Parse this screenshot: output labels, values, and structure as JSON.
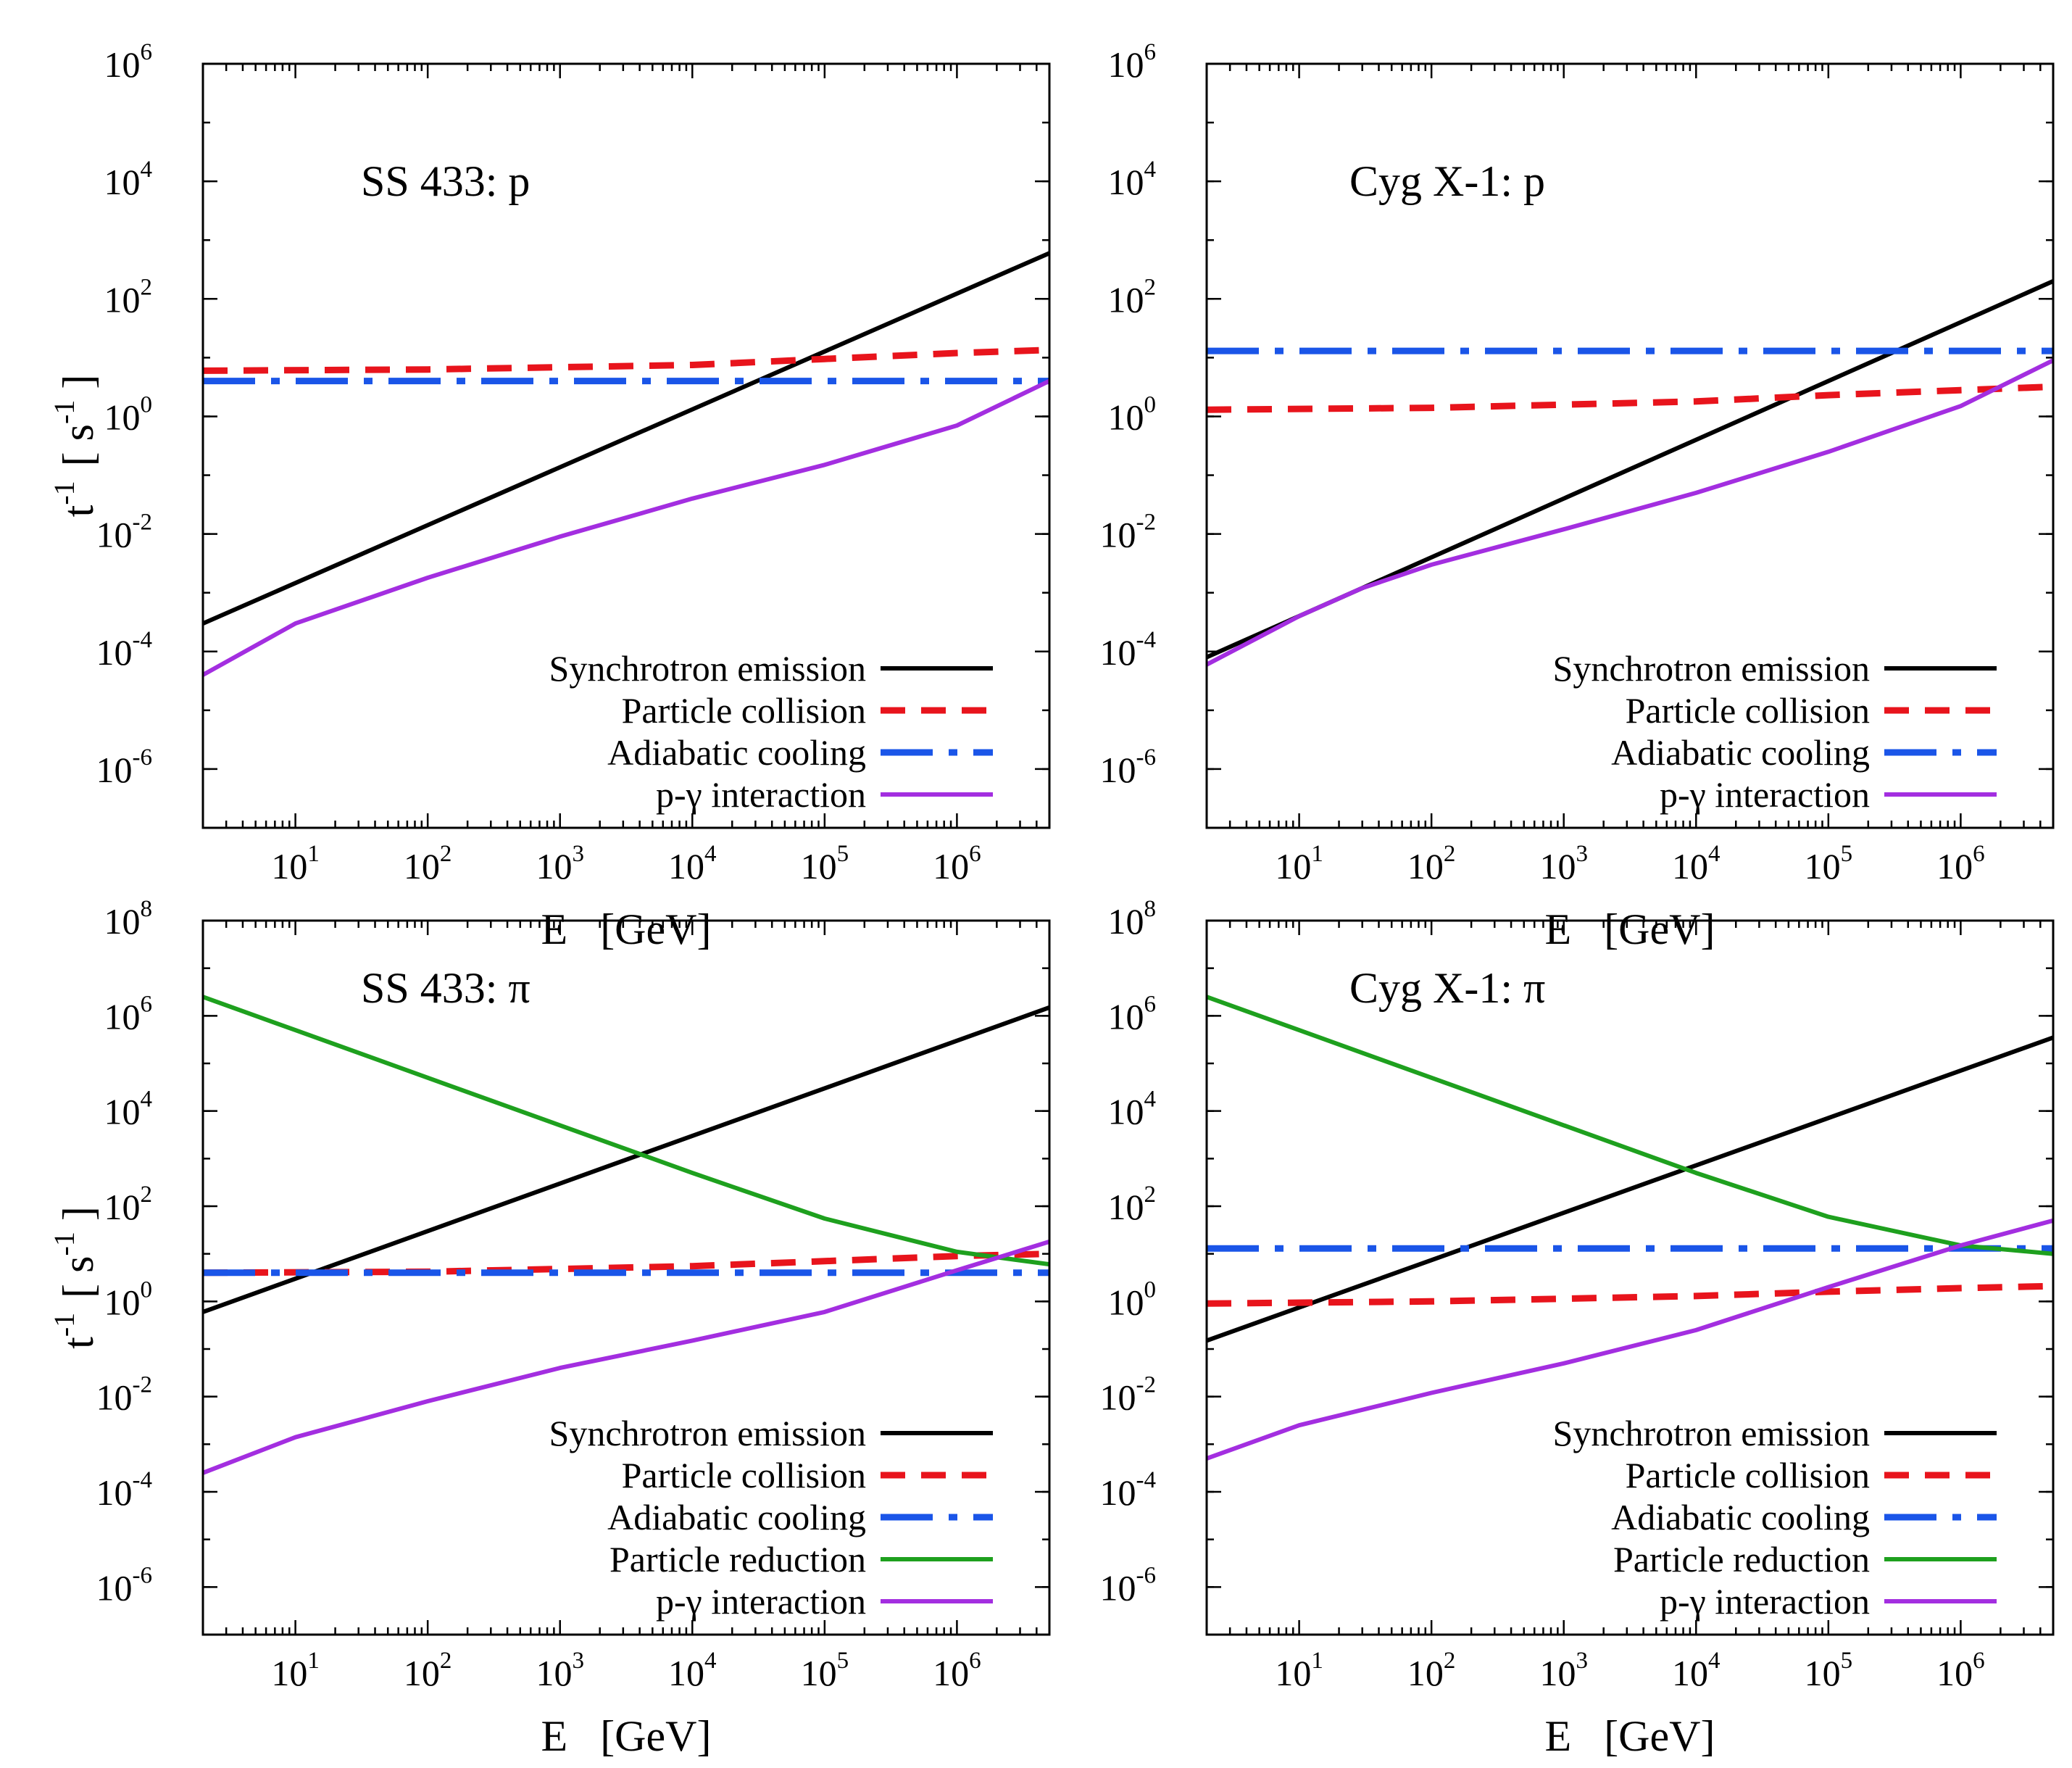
{
  "colors": {
    "synchrotron": "#000000",
    "collision": "#e8141c",
    "adiabatic": "#1a55e8",
    "reduction": "#1ea01e",
    "pgamma": "#a32ee0"
  },
  "axis_titles": {
    "x_base": "E",
    "x_unit": "[GeV]",
    "y_base": "t",
    "y_base_exp": "-1",
    "y_unit_open": "[ s",
    "y_unit_exp": "-1",
    "y_unit_close": " ]"
  },
  "chart_data": [
    {
      "type": "line",
      "title": "SS 433: p",
      "xscale": "log",
      "yscale": "log",
      "xlim": [
        2,
        5000000
      ],
      "ylim": [
        1e-07,
        1000000.0
      ],
      "xticks": [
        {
          "base": "10",
          "exp": "1",
          "value": 10
        },
        {
          "base": "10",
          "exp": "2",
          "value": 100
        },
        {
          "base": "10",
          "exp": "3",
          "value": 1000
        },
        {
          "base": "10",
          "exp": "4",
          "value": 10000
        },
        {
          "base": "10",
          "exp": "5",
          "value": 100000
        },
        {
          "base": "10",
          "exp": "6",
          "value": 1000000
        }
      ],
      "yticks": [
        {
          "base": "10",
          "exp": "-6",
          "value": 1e-06
        },
        {
          "base": "10",
          "exp": "-4",
          "value": 0.0001
        },
        {
          "base": "10",
          "exp": "-2",
          "value": 0.01
        },
        {
          "base": "10",
          "exp": "0",
          "value": 1
        },
        {
          "base": "10",
          "exp": "2",
          "value": 100
        },
        {
          "base": "10",
          "exp": "4",
          "value": 10000
        },
        {
          "base": "10",
          "exp": "6",
          "value": 1000000
        }
      ],
      "legend_position": "bottom-right",
      "series": [
        {
          "name": "Synchrotron emission",
          "style": "solid",
          "color_key": "synchrotron",
          "x": [
            2,
            5000000
          ],
          "y": [
            0.0003,
            600
          ]
        },
        {
          "name": "Particle collision",
          "style": "dashed",
          "color_key": "collision",
          "x": [
            2,
            100,
            10000,
            100000,
            1000000,
            5000000
          ],
          "y": [
            6,
            6.3,
            7.5,
            9.5,
            12,
            13.5
          ]
        },
        {
          "name": "Adiabatic cooling",
          "style": "dashdot",
          "color_key": "adiabatic",
          "x": [
            2,
            5000000
          ],
          "y": [
            4,
            4
          ]
        },
        {
          "name": "p-γ interaction",
          "style": "solid",
          "color_key": "pgamma",
          "x": [
            2,
            10,
            100,
            1000,
            10000,
            100000,
            1000000,
            5000000
          ],
          "y": [
            4e-05,
            0.0003,
            0.0018,
            0.009,
            0.04,
            0.15,
            0.7,
            4
          ]
        }
      ]
    },
    {
      "type": "line",
      "title": "Cyg X-1: p",
      "xscale": "log",
      "yscale": "log",
      "xlim": [
        2,
        5000000
      ],
      "ylim": [
        1e-07,
        1000000.0
      ],
      "xticks": [
        {
          "base": "10",
          "exp": "1",
          "value": 10
        },
        {
          "base": "10",
          "exp": "2",
          "value": 100
        },
        {
          "base": "10",
          "exp": "3",
          "value": 1000
        },
        {
          "base": "10",
          "exp": "4",
          "value": 10000
        },
        {
          "base": "10",
          "exp": "5",
          "value": 100000
        },
        {
          "base": "10",
          "exp": "6",
          "value": 1000000
        }
      ],
      "yticks": [
        {
          "base": "10",
          "exp": "-6",
          "value": 1e-06
        },
        {
          "base": "10",
          "exp": "-4",
          "value": 0.0001
        },
        {
          "base": "10",
          "exp": "-2",
          "value": 0.01
        },
        {
          "base": "10",
          "exp": "0",
          "value": 1
        },
        {
          "base": "10",
          "exp": "2",
          "value": 100
        },
        {
          "base": "10",
          "exp": "4",
          "value": 10000
        },
        {
          "base": "10",
          "exp": "6",
          "value": 1000000
        }
      ],
      "legend_position": "bottom-right",
      "series": [
        {
          "name": "Synchrotron emission",
          "style": "solid",
          "color_key": "synchrotron",
          "x": [
            2,
            5000000
          ],
          "y": [
            8e-05,
            200
          ]
        },
        {
          "name": "Particle collision",
          "style": "dashed",
          "color_key": "collision",
          "x": [
            2,
            100,
            10000,
            100000,
            1000000,
            5000000
          ],
          "y": [
            1.3,
            1.4,
            1.8,
            2.3,
            2.8,
            3.2
          ]
        },
        {
          "name": "Adiabatic cooling",
          "style": "dashdot",
          "color_key": "adiabatic",
          "x": [
            2,
            5000000
          ],
          "y": [
            13,
            13
          ]
        },
        {
          "name": "p-γ interaction",
          "style": "solid",
          "color_key": "pgamma",
          "x": [
            2,
            10,
            30,
            100,
            1000,
            10000,
            100000,
            1000000,
            5000000
          ],
          "y": [
            6e-05,
            0.0004,
            0.0012,
            0.003,
            0.012,
            0.05,
            0.25,
            1.5,
            9
          ]
        }
      ]
    },
    {
      "type": "line",
      "title": "SS 433: π",
      "xscale": "log",
      "yscale": "log",
      "xlim": [
        2,
        5000000
      ],
      "ylim": [
        1e-07,
        100000000.0
      ],
      "xticks": [
        {
          "base": "10",
          "exp": "1",
          "value": 10
        },
        {
          "base": "10",
          "exp": "2",
          "value": 100
        },
        {
          "base": "10",
          "exp": "3",
          "value": 1000
        },
        {
          "base": "10",
          "exp": "4",
          "value": 10000
        },
        {
          "base": "10",
          "exp": "5",
          "value": 100000
        },
        {
          "base": "10",
          "exp": "6",
          "value": 1000000
        }
      ],
      "yticks": [
        {
          "base": "10",
          "exp": "-6",
          "value": 1e-06
        },
        {
          "base": "10",
          "exp": "-4",
          "value": 0.0001
        },
        {
          "base": "10",
          "exp": "-2",
          "value": 0.01
        },
        {
          "base": "10",
          "exp": "0",
          "value": 1
        },
        {
          "base": "10",
          "exp": "2",
          "value": 100
        },
        {
          "base": "10",
          "exp": "4",
          "value": 10000
        },
        {
          "base": "10",
          "exp": "6",
          "value": 1000000
        },
        {
          "base": "10",
          "exp": "8",
          "value": 100000000
        }
      ],
      "legend_position": "bottom-right",
      "series": [
        {
          "name": "Synchrotron emission",
          "style": "solid",
          "color_key": "synchrotron",
          "x": [
            2,
            5000000
          ],
          "y": [
            0.6,
            1500000
          ]
        },
        {
          "name": "Particle collision",
          "style": "dashed",
          "color_key": "collision",
          "x": [
            2,
            100,
            10000,
            100000,
            1000000,
            5000000
          ],
          "y": [
            4,
            4.2,
            5.5,
            7,
            9,
            10
          ]
        },
        {
          "name": "Adiabatic cooling",
          "style": "dashdot",
          "color_key": "adiabatic",
          "x": [
            2,
            5000000
          ],
          "y": [
            4,
            4
          ]
        },
        {
          "name": "Particle reduction",
          "style": "solid",
          "color_key": "reduction",
          "x": [
            2,
            10,
            100,
            1000,
            10000,
            100000,
            1000000,
            5000000
          ],
          "y": [
            2500000,
            500000,
            50000,
            5000,
            500,
            55,
            11,
            6
          ]
        },
        {
          "name": "p-γ interaction",
          "style": "solid",
          "color_key": "pgamma",
          "x": [
            2,
            10,
            100,
            1000,
            10000,
            100000,
            1000000,
            5000000
          ],
          "y": [
            0.00025,
            0.0014,
            0.008,
            0.04,
            0.15,
            0.6,
            4.5,
            18
          ]
        }
      ]
    },
    {
      "type": "line",
      "title": "Cyg X-1: π",
      "xscale": "log",
      "yscale": "log",
      "xlim": [
        2,
        5000000
      ],
      "ylim": [
        1e-07,
        100000000.0
      ],
      "xticks": [
        {
          "base": "10",
          "exp": "1",
          "value": 10
        },
        {
          "base": "10",
          "exp": "2",
          "value": 100
        },
        {
          "base": "10",
          "exp": "3",
          "value": 1000
        },
        {
          "base": "10",
          "exp": "4",
          "value": 10000
        },
        {
          "base": "10",
          "exp": "5",
          "value": 100000
        },
        {
          "base": "10",
          "exp": "6",
          "value": 1000000
        }
      ],
      "yticks": [
        {
          "base": "10",
          "exp": "-6",
          "value": 1e-06
        },
        {
          "base": "10",
          "exp": "-4",
          "value": 0.0001
        },
        {
          "base": "10",
          "exp": "-2",
          "value": 0.01
        },
        {
          "base": "10",
          "exp": "0",
          "value": 1
        },
        {
          "base": "10",
          "exp": "2",
          "value": 100
        },
        {
          "base": "10",
          "exp": "4",
          "value": 10000
        },
        {
          "base": "10",
          "exp": "6",
          "value": 1000000
        },
        {
          "base": "10",
          "exp": "8",
          "value": 100000000
        }
      ],
      "legend_position": "bottom-right",
      "series": [
        {
          "name": "Synchrotron emission",
          "style": "solid",
          "color_key": "synchrotron",
          "x": [
            2,
            5000000
          ],
          "y": [
            0.15,
            350000
          ]
        },
        {
          "name": "Particle collision",
          "style": "dashed",
          "color_key": "collision",
          "x": [
            2,
            100,
            10000,
            100000,
            1000000,
            5000000
          ],
          "y": [
            0.9,
            1.0,
            1.3,
            1.6,
            1.9,
            2.1
          ]
        },
        {
          "name": "Adiabatic cooling",
          "style": "dashdot",
          "color_key": "adiabatic",
          "x": [
            2,
            5000000
          ],
          "y": [
            13,
            13
          ]
        },
        {
          "name": "Particle reduction",
          "style": "solid",
          "color_key": "reduction",
          "x": [
            2,
            10,
            100,
            1000,
            10000,
            100000,
            1000000,
            5000000
          ],
          "y": [
            2500000,
            500000,
            50000,
            5000,
            500,
            60,
            15,
            10
          ]
        },
        {
          "name": "p-γ interaction",
          "style": "solid",
          "color_key": "pgamma",
          "x": [
            2,
            10,
            100,
            1000,
            10000,
            100000,
            1000000,
            5000000
          ],
          "y": [
            0.0005,
            0.0025,
            0.012,
            0.05,
            0.25,
            2,
            15,
            50
          ]
        }
      ]
    }
  ]
}
